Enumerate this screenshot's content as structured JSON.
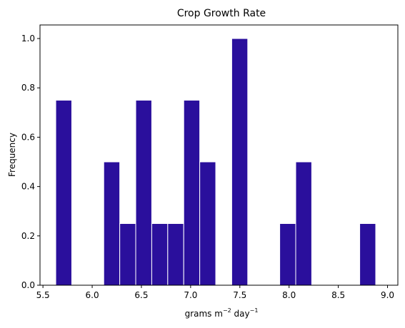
{
  "chart_data": {
    "type": "bar",
    "title": "Crop Growth Rate",
    "xlabel": {
      "base1": "grams m",
      "sup1": "−2",
      "base2": " day",
      "sup2": "−1"
    },
    "ylabel": "Frequency",
    "xlim": [
      5.47,
      9.105
    ],
    "ylim": [
      0,
      1.055
    ],
    "bar_color": "#2a0f9c",
    "edge_color": "#ffffff",
    "bin_width": 0.1625,
    "bins": [
      {
        "x0": 5.63,
        "value": 0.75
      },
      {
        "x0": 6.1175,
        "value": 0.5
      },
      {
        "x0": 6.28,
        "value": 0.25
      },
      {
        "x0": 6.4425,
        "value": 0.75
      },
      {
        "x0": 6.605,
        "value": 0.25
      },
      {
        "x0": 6.7675,
        "value": 0.25
      },
      {
        "x0": 6.93,
        "value": 0.75
      },
      {
        "x0": 7.0925,
        "value": 0.5
      },
      {
        "x0": 7.4175,
        "value": 1.0
      },
      {
        "x0": 7.905,
        "value": 0.25
      },
      {
        "x0": 8.0675,
        "value": 0.5
      },
      {
        "x0": 8.7175,
        "value": 0.25
      }
    ],
    "x_ticks": [
      {
        "value": 5.5,
        "label": "5.5"
      },
      {
        "value": 6.0,
        "label": "6.0"
      },
      {
        "value": 6.5,
        "label": "6.5"
      },
      {
        "value": 7.0,
        "label": "7.0"
      },
      {
        "value": 7.5,
        "label": "7.5"
      },
      {
        "value": 8.0,
        "label": "8.0"
      },
      {
        "value": 8.5,
        "label": "8.5"
      },
      {
        "value": 9.0,
        "label": "9.0"
      }
    ],
    "y_ticks": [
      {
        "value": 0.0,
        "label": "0.0"
      },
      {
        "value": 0.2,
        "label": "0.2"
      },
      {
        "value": 0.4,
        "label": "0.4"
      },
      {
        "value": 0.6,
        "label": "0.6"
      },
      {
        "value": 0.8,
        "label": "0.8"
      },
      {
        "value": 1.0,
        "label": "1.0"
      }
    ],
    "grid": false,
    "legend": "none"
  }
}
